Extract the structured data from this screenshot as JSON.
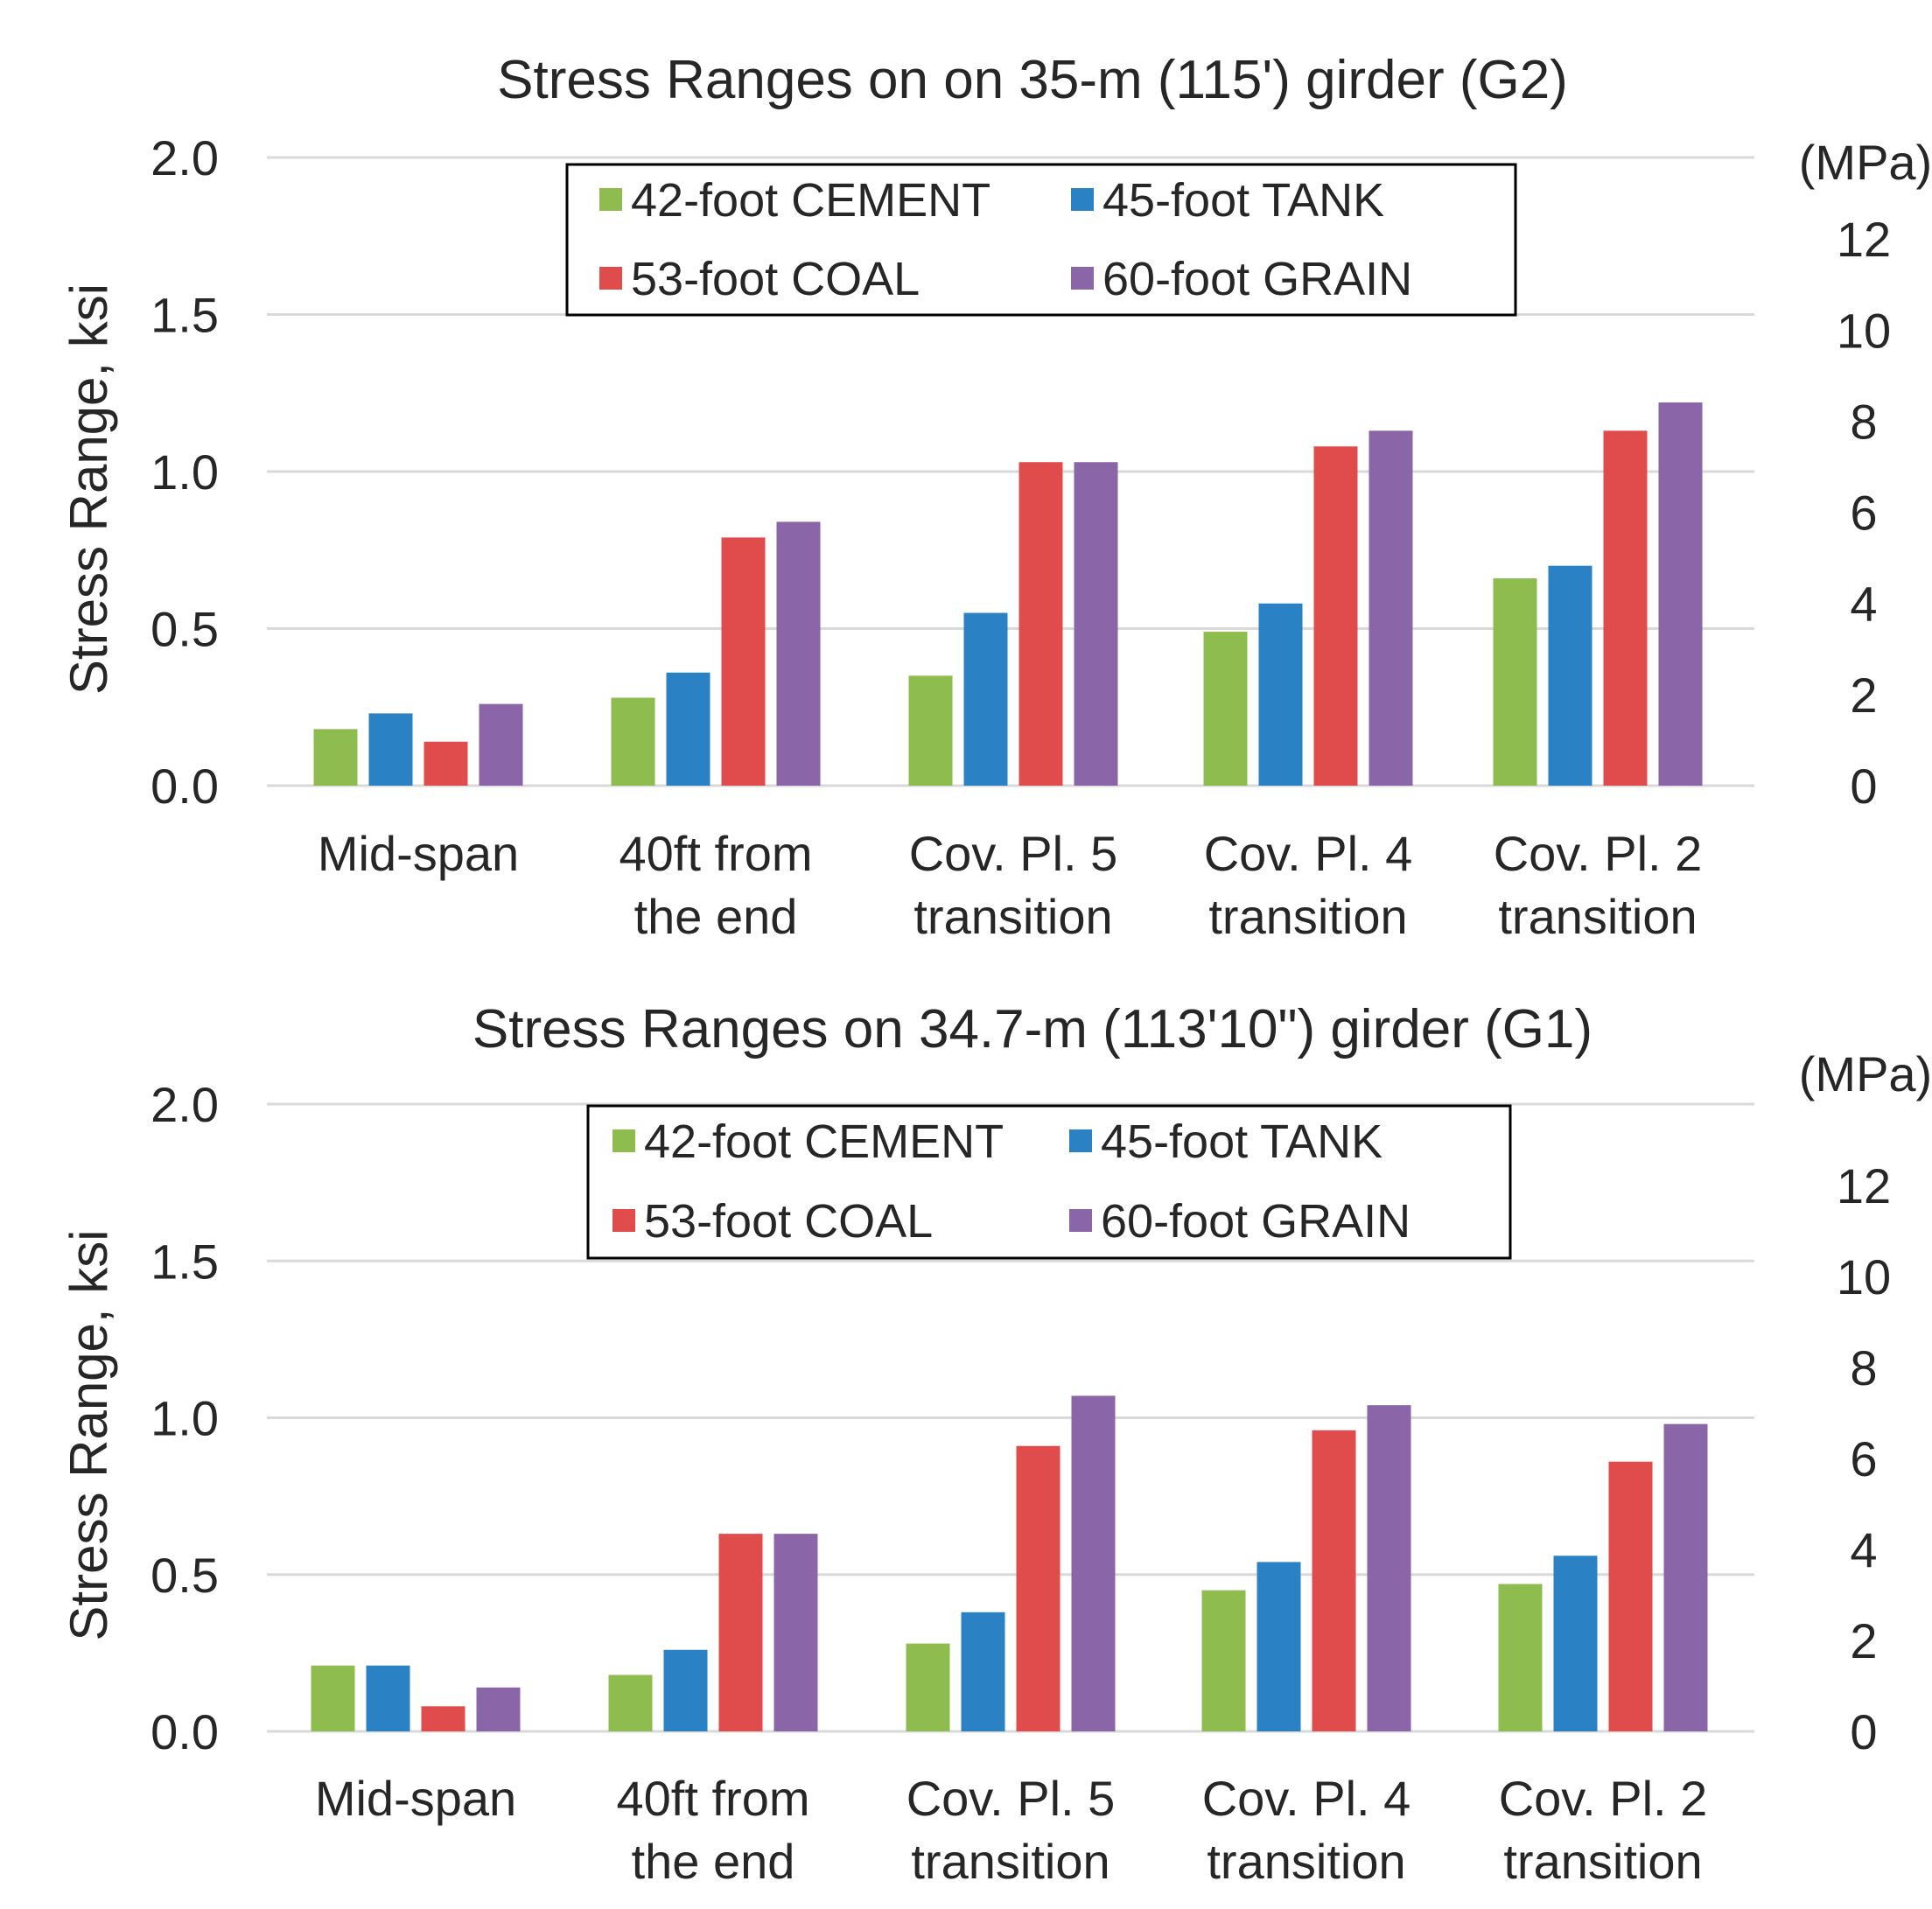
{
  "chart_data": [
    {
      "type": "bar",
      "title": "Stress Ranges on on 35-m (115') girder (G2)",
      "ylabel": "Stress Range, ksi",
      "y2label": "(MPa)",
      "ylim": [
        0,
        2
      ],
      "yticks": [
        "0.0",
        "0.5",
        "1.0",
        "1.5",
        "2.0"
      ],
      "y2ticks": [
        "0",
        "2",
        "4",
        "6",
        "8",
        "10",
        "12"
      ],
      "categories": [
        [
          "Mid-span"
        ],
        [
          "40ft from",
          "the end"
        ],
        [
          "Cov. Pl. 5",
          "transition"
        ],
        [
          "Cov. Pl. 4",
          "transition"
        ],
        [
          "Cov. Pl. 2",
          "transition"
        ]
      ],
      "series": [
        {
          "name": "42-foot CEMENT",
          "color": "#8fbc4f",
          "values": [
            0.18,
            0.28,
            0.35,
            0.49,
            0.66
          ]
        },
        {
          "name": "45-foot TANK",
          "color": "#2a82c4",
          "values": [
            0.23,
            0.36,
            0.55,
            0.58,
            0.7
          ]
        },
        {
          "name": "53-foot COAL",
          "color": "#e04b4b",
          "values": [
            0.14,
            0.79,
            1.03,
            1.08,
            1.13
          ]
        },
        {
          "name": "60-foot GRAIN",
          "color": "#8a65a8",
          "values": [
            0.26,
            0.84,
            1.03,
            1.13,
            1.22
          ]
        }
      ],
      "grid": true,
      "legend": "top-center"
    },
    {
      "type": "bar",
      "title": "Stress Ranges on 34.7-m (113'10\") girder (G1)",
      "ylabel": "Stress Range, ksi",
      "y2label": "(MPa)",
      "ylim": [
        0,
        2
      ],
      "yticks": [
        "0.0",
        "0.5",
        "1.0",
        "1.5",
        "2.0"
      ],
      "y2ticks": [
        "0",
        "2",
        "4",
        "6",
        "8",
        "10",
        "12"
      ],
      "categories": [
        [
          "Mid-span"
        ],
        [
          "40ft from",
          "the end"
        ],
        [
          "Cov. Pl. 5",
          "transition"
        ],
        [
          "Cov. Pl. 4",
          "transition"
        ],
        [
          "Cov. Pl. 2",
          "transition"
        ]
      ],
      "series": [
        {
          "name": "42-foot CEMENT",
          "color": "#8fbc4f",
          "values": [
            0.21,
            0.18,
            0.28,
            0.45,
            0.47
          ]
        },
        {
          "name": "45-foot TANK",
          "color": "#2a82c4",
          "values": [
            0.21,
            0.26,
            0.38,
            0.54,
            0.56
          ]
        },
        {
          "name": "53-foot COAL",
          "color": "#e04b4b",
          "values": [
            0.08,
            0.63,
            0.91,
            0.96,
            0.86
          ]
        },
        {
          "name": "60-foot GRAIN",
          "color": "#8a65a8",
          "values": [
            0.14,
            0.63,
            1.07,
            1.04,
            0.98
          ]
        }
      ],
      "grid": true,
      "legend": "top-center"
    }
  ]
}
